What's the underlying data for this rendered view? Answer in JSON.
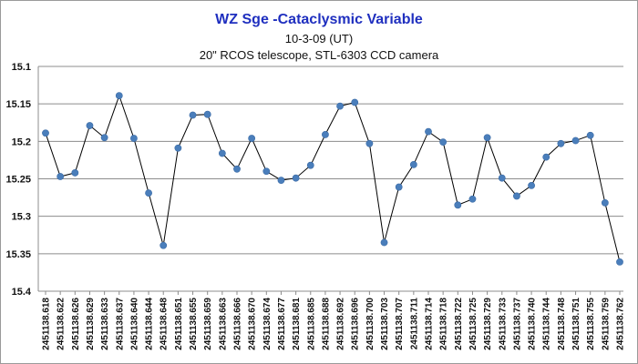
{
  "chart_data": {
    "type": "line",
    "title": "WZ Sge -Cataclysmic Variable",
    "subtitle": "10-3-09 (UT)",
    "subtitle2": "20\" RCOS telescope, STL-6303 CCD camera",
    "xlabel": "",
    "ylabel": "",
    "y_inverted": true,
    "ylim": [
      15.1,
      15.4
    ],
    "yticks": [
      "15.1",
      "15.15",
      "15.2",
      "15.25",
      "15.3",
      "15.35",
      "15.4"
    ],
    "grid": true,
    "legend": "none",
    "line_color": "#000000",
    "marker_color": "#4a7ebb",
    "x": [
      "2451138.618",
      "2451138.622",
      "2451138.626",
      "2451138.629",
      "2451138.633",
      "2451138.637",
      "2451138.640",
      "2451138.644",
      "2451138.648",
      "2451138.651",
      "2451138.655",
      "2451138.659",
      "2451138.663",
      "2451138.666",
      "2451138.670",
      "2451138.674",
      "2451138.677",
      "2451138.681",
      "2451138.685",
      "2451138.688",
      "2451138.692",
      "2451138.696",
      "2451138.700",
      "2451138.703",
      "2451138.707",
      "2451138.711",
      "2451138.714",
      "2451138.718",
      "2451138.722",
      "2451138.725",
      "2451138.729",
      "2451138.733",
      "2451138.737",
      "2451138.740",
      "2451138.744",
      "2451138.748",
      "2451138.751",
      "2451138.755",
      "2451138.759",
      "2451138.762"
    ],
    "series": [
      {
        "values": [
          15.189,
          15.247,
          15.242,
          15.179,
          15.195,
          15.139,
          15.196,
          15.269,
          15.339,
          15.209,
          15.165,
          15.164,
          15.216,
          15.237,
          15.196,
          15.24,
          15.252,
          15.249,
          15.232,
          15.191,
          15.153,
          15.148,
          15.203,
          15.335,
          15.261,
          15.231,
          15.187,
          15.201,
          15.285,
          15.277,
          15.195,
          15.249,
          15.273,
          15.259,
          15.221,
          15.203,
          15.199,
          15.192,
          15.282,
          15.361
        ]
      }
    ]
  }
}
